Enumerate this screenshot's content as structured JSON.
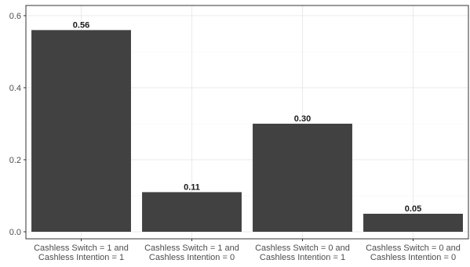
{
  "chart_data": {
    "type": "bar",
    "title": "",
    "xlabel": "",
    "ylabel": "",
    "categories": [
      [
        "Cashless Switch = 1 and",
        "Cashless Intention = 1"
      ],
      [
        "Cashless Switch = 1 and",
        "Cashless Intention = 0"
      ],
      [
        "Cashless Switch = 0 and",
        "Cashless Intention = 1"
      ],
      [
        "Cashless Switch = 0 and",
        "Cashless Intention = 0"
      ]
    ],
    "values": [
      0.56,
      0.11,
      0.3,
      0.05
    ],
    "data_labels": [
      "0.56",
      "0.11",
      "0.30",
      "0.05"
    ],
    "ylim": [
      0,
      0.6
    ],
    "yticks": [
      0.0,
      0.2,
      0.4,
      0.6
    ],
    "ytick_labels": [
      "0.0",
      "0.2",
      "0.4",
      "0.6"
    ],
    "grid": true,
    "legend": "none",
    "colors": {
      "bar": "#414141",
      "grid": "#ebebeb",
      "panel_border": "#333333",
      "background": "#ffffff"
    }
  }
}
